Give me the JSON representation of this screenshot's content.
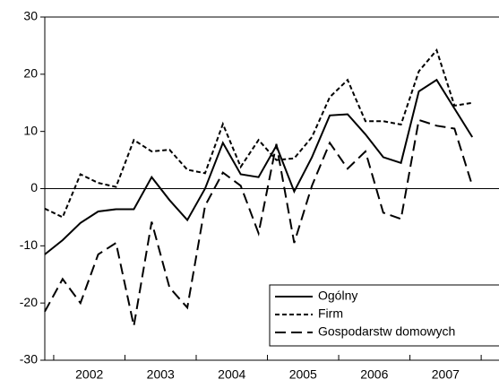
{
  "chart_data": {
    "type": "line",
    "x": [
      2001.875,
      2002.125,
      2002.375,
      2002.625,
      2002.875,
      2003.125,
      2003.375,
      2003.625,
      2003.875,
      2004.125,
      2004.375,
      2004.625,
      2004.875,
      2005.125,
      2005.375,
      2005.625,
      2005.875,
      2006.125,
      2006.375,
      2006.625,
      2006.875,
      2007.125,
      2007.375,
      2007.625,
      2007.875
    ],
    "series": [
      {
        "name": "Ogólny",
        "color": "#000000",
        "dash": "solid",
        "values": [
          -11.5,
          -9,
          -6,
          -4,
          -3.6,
          -3.6,
          2,
          -2,
          -5.5,
          0,
          8,
          2.5,
          2,
          7.5,
          -0.5,
          5.5,
          12.8,
          13,
          9.5,
          5.5,
          4.5,
          17,
          19,
          14,
          9
        ]
      },
      {
        "name": "Firm",
        "color": "#000000",
        "dash": "short",
        "values": [
          -3.5,
          -5,
          2.5,
          1,
          0.3,
          8.5,
          6.5,
          6.8,
          3.3,
          2.7,
          11.3,
          3.8,
          8.5,
          5,
          5.3,
          9,
          16,
          19,
          11.8,
          11.8,
          11.2,
          20.5,
          24.2,
          14.5,
          15
        ]
      },
      {
        "name": "Gospodarstw domowych",
        "color": "#000000",
        "dash": "long",
        "values": [
          -21.5,
          -15.8,
          -20,
          -11.5,
          -9.5,
          -24,
          -5.8,
          -17.3,
          -20.8,
          -3,
          2.8,
          0.5,
          -7.8,
          7.8,
          -9.5,
          0.5,
          8,
          3.5,
          6.5,
          -4.2,
          -5.3,
          12,
          11,
          10.5,
          0.5
        ]
      }
    ],
    "xlim": [
      2001.875,
      2008.25
    ],
    "xticks": [
      {
        "value": 2002,
        "label": "2002"
      },
      {
        "value": 2003,
        "label": "2003"
      },
      {
        "value": 2004,
        "label": "2004"
      },
      {
        "value": 2005,
        "label": "2005"
      },
      {
        "value": 2006,
        "label": "2006"
      },
      {
        "value": 2007,
        "label": "2007"
      },
      2008
    ],
    "ylim": [
      -30,
      30
    ],
    "yticks": [
      -30,
      -20,
      -10,
      0,
      10,
      20,
      30
    ],
    "zero_line": true,
    "legend": "lower right"
  }
}
